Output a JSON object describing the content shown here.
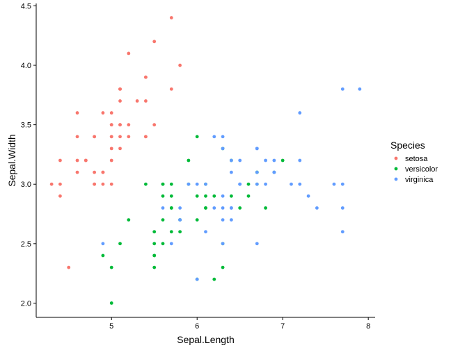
{
  "chart_data": {
    "type": "scatter",
    "title": "",
    "xlabel": "Sepal.Length",
    "ylabel": "Sepal.Width",
    "xlim": [
      4.3,
      7.9
    ],
    "ylim": [
      2.0,
      4.4
    ],
    "xticks": [
      5,
      6,
      7,
      8
    ],
    "yticks": [
      2.0,
      2.5,
      3.0,
      3.5,
      4.0,
      4.5
    ],
    "xtick_labels": [
      "5",
      "6",
      "7",
      "8"
    ],
    "ytick_labels": [
      "2.0",
      "2.5",
      "3.0",
      "3.5",
      "4.0",
      "4.5"
    ],
    "grid": false,
    "legend": {
      "title": "Species",
      "placement": "right"
    },
    "series": [
      {
        "name": "setosa",
        "color": "#F8766D",
        "points": [
          [
            5.1,
            3.5
          ],
          [
            4.9,
            3.0
          ],
          [
            4.7,
            3.2
          ],
          [
            4.6,
            3.1
          ],
          [
            5.0,
            3.6
          ],
          [
            5.4,
            3.9
          ],
          [
            4.6,
            3.4
          ],
          [
            5.0,
            3.4
          ],
          [
            4.4,
            2.9
          ],
          [
            4.9,
            3.1
          ],
          [
            5.4,
            3.7
          ],
          [
            4.8,
            3.4
          ],
          [
            4.8,
            3.0
          ],
          [
            4.3,
            3.0
          ],
          [
            5.8,
            4.0
          ],
          [
            5.7,
            4.4
          ],
          [
            5.4,
            3.9
          ],
          [
            5.1,
            3.5
          ],
          [
            5.7,
            3.8
          ],
          [
            5.1,
            3.8
          ],
          [
            5.4,
            3.4
          ],
          [
            5.1,
            3.7
          ],
          [
            4.6,
            3.6
          ],
          [
            5.1,
            3.3
          ],
          [
            4.8,
            3.4
          ],
          [
            5.0,
            3.0
          ],
          [
            5.0,
            3.4
          ],
          [
            5.2,
            3.5
          ],
          [
            5.2,
            3.4
          ],
          [
            4.7,
            3.2
          ],
          [
            4.8,
            3.1
          ],
          [
            5.4,
            3.4
          ],
          [
            5.2,
            4.1
          ],
          [
            5.5,
            4.2
          ],
          [
            4.9,
            3.1
          ],
          [
            5.0,
            3.2
          ],
          [
            5.5,
            3.5
          ],
          [
            4.9,
            3.6
          ],
          [
            4.4,
            3.0
          ],
          [
            5.1,
            3.4
          ],
          [
            5.0,
            3.5
          ],
          [
            4.5,
            2.3
          ],
          [
            4.4,
            3.2
          ],
          [
            5.0,
            3.5
          ],
          [
            5.1,
            3.8
          ],
          [
            4.8,
            3.0
          ],
          [
            5.1,
            3.8
          ],
          [
            4.6,
            3.2
          ],
          [
            5.3,
            3.7
          ],
          [
            5.0,
            3.3
          ]
        ]
      },
      {
        "name": "versicolor",
        "color": "#00BA38",
        "points": [
          [
            7.0,
            3.2
          ],
          [
            6.4,
            3.2
          ],
          [
            6.9,
            3.1
          ],
          [
            5.5,
            2.3
          ],
          [
            6.5,
            2.8
          ],
          [
            5.7,
            2.8
          ],
          [
            6.3,
            3.3
          ],
          [
            4.9,
            2.4
          ],
          [
            6.6,
            2.9
          ],
          [
            5.2,
            2.7
          ],
          [
            5.0,
            2.0
          ],
          [
            5.9,
            3.0
          ],
          [
            6.0,
            2.2
          ],
          [
            6.1,
            2.9
          ],
          [
            5.6,
            2.9
          ],
          [
            6.7,
            3.1
          ],
          [
            5.6,
            3.0
          ],
          [
            5.8,
            2.7
          ],
          [
            6.2,
            2.2
          ],
          [
            5.6,
            2.5
          ],
          [
            5.9,
            3.2
          ],
          [
            6.1,
            2.8
          ],
          [
            6.3,
            2.5
          ],
          [
            6.1,
            2.8
          ],
          [
            6.4,
            2.9
          ],
          [
            6.6,
            3.0
          ],
          [
            6.8,
            2.8
          ],
          [
            6.7,
            3.0
          ],
          [
            6.0,
            2.9
          ],
          [
            5.7,
            2.6
          ],
          [
            5.5,
            2.4
          ],
          [
            5.5,
            2.4
          ],
          [
            5.8,
            2.7
          ],
          [
            6.0,
            2.7
          ],
          [
            5.4,
            3.0
          ],
          [
            6.0,
            3.4
          ],
          [
            6.7,
            3.1
          ],
          [
            6.3,
            2.3
          ],
          [
            5.6,
            3.0
          ],
          [
            5.5,
            2.5
          ],
          [
            5.5,
            2.6
          ],
          [
            6.1,
            3.0
          ],
          [
            5.8,
            2.6
          ],
          [
            5.0,
            2.3
          ],
          [
            5.6,
            2.7
          ],
          [
            5.7,
            3.0
          ],
          [
            5.7,
            2.9
          ],
          [
            6.2,
            2.9
          ],
          [
            5.1,
            2.5
          ],
          [
            5.7,
            2.8
          ]
        ]
      },
      {
        "name": "virginica",
        "color": "#619CFF",
        "points": [
          [
            6.3,
            3.3
          ],
          [
            5.8,
            2.7
          ],
          [
            7.1,
            3.0
          ],
          [
            6.3,
            2.9
          ],
          [
            6.5,
            3.0
          ],
          [
            7.6,
            3.0
          ],
          [
            4.9,
            2.5
          ],
          [
            7.3,
            2.9
          ],
          [
            6.7,
            2.5
          ],
          [
            7.2,
            3.6
          ],
          [
            6.5,
            3.2
          ],
          [
            6.4,
            2.7
          ],
          [
            6.8,
            3.0
          ],
          [
            5.7,
            2.5
          ],
          [
            5.8,
            2.8
          ],
          [
            6.4,
            3.2
          ],
          [
            6.5,
            3.0
          ],
          [
            7.7,
            3.8
          ],
          [
            7.7,
            2.6
          ],
          [
            6.0,
            2.2
          ],
          [
            6.9,
            3.2
          ],
          [
            5.6,
            2.8
          ],
          [
            7.7,
            2.8
          ],
          [
            6.3,
            2.7
          ],
          [
            6.7,
            3.3
          ],
          [
            7.2,
            3.2
          ],
          [
            6.2,
            2.8
          ],
          [
            6.1,
            3.0
          ],
          [
            6.4,
            2.8
          ],
          [
            7.2,
            3.0
          ],
          [
            7.4,
            2.8
          ],
          [
            7.9,
            3.8
          ],
          [
            6.4,
            2.8
          ],
          [
            6.3,
            2.8
          ],
          [
            6.1,
            2.6
          ],
          [
            7.7,
            3.0
          ],
          [
            6.3,
            3.4
          ],
          [
            6.4,
            3.1
          ],
          [
            6.0,
            3.0
          ],
          [
            6.9,
            3.1
          ],
          [
            6.7,
            3.1
          ],
          [
            6.9,
            3.1
          ],
          [
            5.8,
            2.7
          ],
          [
            6.8,
            3.2
          ],
          [
            6.7,
            3.3
          ],
          [
            6.7,
            3.0
          ],
          [
            6.3,
            2.5
          ],
          [
            6.5,
            3.0
          ],
          [
            6.2,
            3.4
          ],
          [
            5.9,
            3.0
          ]
        ]
      }
    ]
  }
}
